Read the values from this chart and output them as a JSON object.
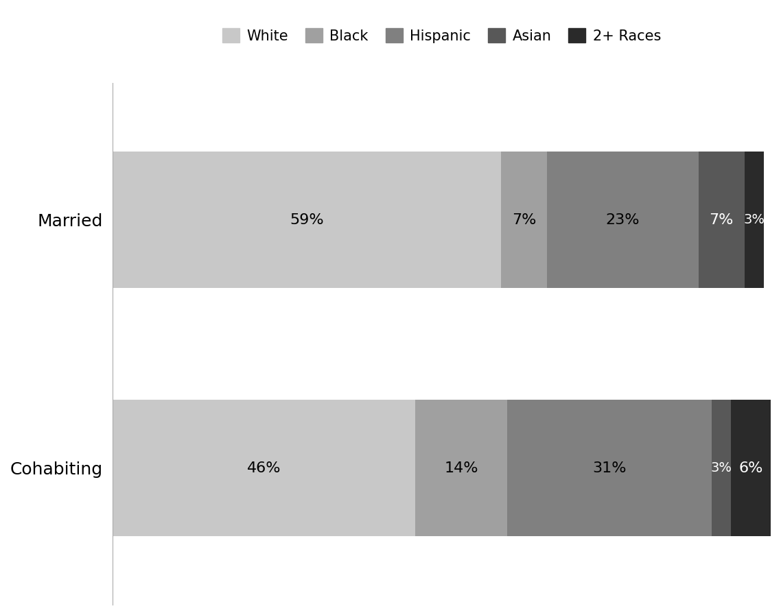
{
  "categories": [
    "Cohabiting",
    "Married"
  ],
  "segments": [
    "White",
    "Black",
    "Hispanic",
    "Asian",
    "2+ Races"
  ],
  "values": {
    "Cohabiting": [
      46,
      14,
      31,
      3,
      6
    ],
    "Married": [
      59,
      7,
      23,
      7,
      3
    ]
  },
  "colors": [
    "#c8c8c8",
    "#a0a0a0",
    "#808080",
    "#585858",
    "#2a2a2a"
  ],
  "legend_labels": [
    "White",
    "Black",
    "Hispanic",
    "Asian",
    "2+ Races"
  ],
  "text_color_light": "#ffffff",
  "text_color_dark": "#000000",
  "bar_height": 0.55,
  "figsize": [
    11.38,
    8.97
  ],
  "dpi": 100
}
